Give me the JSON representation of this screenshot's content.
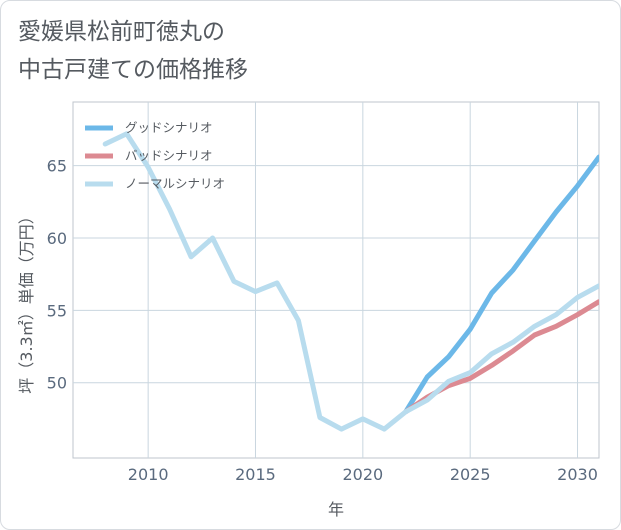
{
  "title_line1": "愛媛県松前町徳丸の",
  "title_line2": "中古戸建ての価格推移",
  "chart_data": {
    "type": "line",
    "title": "愛媛県松前町徳丸の中古戸建ての価格推移",
    "xlabel": "年",
    "ylabel": "坪（3.3㎡）単価（万円）",
    "xlim": [
      2006.5,
      2031
    ],
    "ylim": [
      44.8,
      69.4
    ],
    "xticks": [
      2010,
      2015,
      2020,
      2025,
      2030
    ],
    "yticks": [
      50,
      55,
      60,
      65
    ],
    "grid": true,
    "legend_position": "top-left",
    "series": [
      {
        "name": "グッドシナリオ",
        "color": "#6cb8e8",
        "x": [
          2022,
          2023,
          2024,
          2025,
          2026,
          2027,
          2028,
          2029,
          2030,
          2031
        ],
        "y": [
          48.0,
          50.4,
          51.8,
          53.7,
          56.2,
          57.8,
          59.8,
          61.8,
          63.6,
          65.6
        ]
      },
      {
        "name": "バッドシナリオ",
        "color": "#dc8a92",
        "x": [
          2022,
          2023,
          2024,
          2025,
          2026,
          2027,
          2028,
          2029,
          2030,
          2031
        ],
        "y": [
          48.0,
          49.0,
          49.8,
          50.3,
          51.2,
          52.2,
          53.3,
          53.9,
          54.7,
          55.6
        ]
      },
      {
        "name": "ノーマルシナリオ",
        "color": "#b8dcee",
        "x": [
          2008,
          2009,
          2010,
          2011,
          2012,
          2013,
          2014,
          2015,
          2016,
          2017,
          2018,
          2019,
          2020,
          2021,
          2022,
          2023,
          2024,
          2025,
          2026,
          2027,
          2028,
          2029,
          2030,
          2031
        ],
        "y": [
          66.5,
          67.2,
          64.9,
          62.0,
          58.7,
          60.0,
          57.0,
          56.3,
          56.9,
          54.3,
          47.6,
          46.8,
          47.5,
          46.8,
          48.0,
          48.8,
          50.1,
          50.7,
          52.0,
          52.8,
          53.9,
          54.7,
          55.9,
          56.7
        ]
      }
    ]
  }
}
